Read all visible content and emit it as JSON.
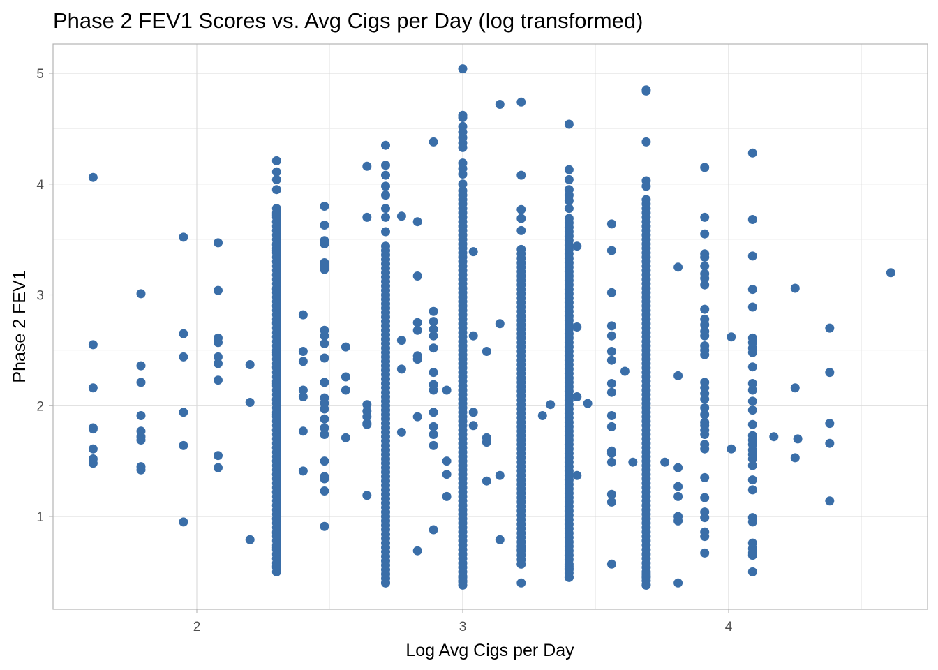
{
  "chart_data": {
    "type": "scatter",
    "title": "Phase 2 FEV1 Scores vs. Avg Cigs per Day (log transformed)",
    "xlabel": "Log Avg Cigs per Day",
    "ylabel": "Phase 2 FEV1",
    "xlim": [
      1.45,
      4.75
    ],
    "ylim": [
      0.3,
      5.3
    ],
    "x_ticks": [
      2,
      3,
      4
    ],
    "y_ticks": [
      1,
      2,
      3,
      4,
      5
    ],
    "x_minor_ticks": [
      1.5,
      2.5,
      3.5,
      4.5
    ],
    "y_minor_ticks": [
      0.5,
      1.5,
      2.5,
      3.5,
      4.5
    ],
    "grid": true,
    "point_color": "#3a6ea8",
    "series": [
      {
        "points": [
          [
            1.61,
            4.06
          ],
          [
            1.61,
            2.55
          ],
          [
            1.61,
            2.16
          ],
          [
            1.61,
            1.8
          ],
          [
            1.61,
            1.79
          ],
          [
            1.61,
            1.61
          ],
          [
            1.61,
            1.52
          ],
          [
            1.61,
            1.48
          ],
          [
            1.79,
            3.01
          ],
          [
            1.79,
            2.36
          ],
          [
            1.79,
            2.21
          ],
          [
            1.79,
            1.91
          ],
          [
            1.79,
            1.77
          ],
          [
            1.79,
            1.72
          ],
          [
            1.79,
            1.69
          ],
          [
            1.79,
            1.45
          ],
          [
            1.79,
            1.42
          ],
          [
            1.95,
            3.52
          ],
          [
            1.95,
            2.65
          ],
          [
            1.95,
            2.44
          ],
          [
            1.95,
            1.94
          ],
          [
            1.95,
            1.64
          ],
          [
            1.95,
            0.95
          ],
          [
            2.08,
            3.47
          ],
          [
            2.08,
            3.04
          ],
          [
            2.08,
            2.61
          ],
          [
            2.08,
            2.57
          ],
          [
            2.08,
            2.44
          ],
          [
            2.08,
            2.38
          ],
          [
            2.08,
            2.23
          ],
          [
            2.08,
            1.55
          ],
          [
            2.08,
            1.44
          ],
          [
            2.2,
            2.37
          ],
          [
            2.2,
            2.03
          ],
          [
            2.2,
            0.79
          ],
          [
            2.4,
            2.82
          ],
          [
            2.4,
            2.49
          ],
          [
            2.4,
            2.4
          ],
          [
            2.4,
            2.14
          ],
          [
            2.4,
            2.08
          ],
          [
            2.4,
            1.77
          ],
          [
            2.4,
            1.41
          ],
          [
            2.48,
            3.8
          ],
          [
            2.48,
            3.63
          ],
          [
            2.48,
            3.49
          ],
          [
            2.48,
            3.46
          ],
          [
            2.48,
            3.29
          ],
          [
            2.48,
            3.26
          ],
          [
            2.48,
            3.23
          ],
          [
            2.48,
            2.68
          ],
          [
            2.48,
            2.63
          ],
          [
            2.48,
            2.56
          ],
          [
            2.48,
            2.43
          ],
          [
            2.48,
            2.21
          ],
          [
            2.48,
            2.07
          ],
          [
            2.48,
            2.02
          ],
          [
            2.48,
            1.97
          ],
          [
            2.48,
            1.88
          ],
          [
            2.48,
            1.8
          ],
          [
            2.48,
            1.74
          ],
          [
            2.48,
            1.5
          ],
          [
            2.48,
            1.36
          ],
          [
            2.48,
            1.34
          ],
          [
            2.48,
            1.23
          ],
          [
            2.48,
            0.91
          ],
          [
            2.56,
            2.53
          ],
          [
            2.56,
            2.26
          ],
          [
            2.56,
            2.14
          ],
          [
            2.56,
            1.71
          ],
          [
            2.64,
            2.01
          ],
          [
            2.64,
            1.95
          ],
          [
            2.64,
            1.9
          ],
          [
            2.64,
            1.84
          ],
          [
            2.64,
            1.83
          ],
          [
            2.64,
            1.19
          ],
          [
            2.64,
            4.16
          ],
          [
            2.64,
            3.7
          ],
          [
            2.77,
            3.71
          ],
          [
            2.77,
            2.59
          ],
          [
            2.77,
            2.33
          ],
          [
            2.77,
            1.76
          ],
          [
            2.83,
            3.66
          ],
          [
            2.83,
            3.17
          ],
          [
            2.83,
            2.75
          ],
          [
            2.83,
            2.68
          ],
          [
            2.83,
            2.45
          ],
          [
            2.83,
            2.42
          ],
          [
            2.83,
            1.9
          ],
          [
            2.83,
            0.69
          ],
          [
            2.89,
            4.38
          ],
          [
            2.89,
            2.85
          ],
          [
            2.89,
            2.76
          ],
          [
            2.89,
            2.69
          ],
          [
            2.89,
            2.63
          ],
          [
            2.89,
            2.52
          ],
          [
            2.89,
            2.3
          ],
          [
            2.89,
            2.19
          ],
          [
            2.89,
            2.14
          ],
          [
            2.89,
            1.94
          ],
          [
            2.89,
            1.81
          ],
          [
            2.89,
            1.74
          ],
          [
            2.89,
            1.64
          ],
          [
            2.89,
            0.88
          ],
          [
            2.94,
            2.14
          ],
          [
            2.94,
            1.5
          ],
          [
            2.94,
            1.38
          ],
          [
            2.94,
            1.18
          ],
          [
            3.04,
            3.39
          ],
          [
            3.04,
            2.63
          ],
          [
            3.04,
            1.94
          ],
          [
            3.04,
            1.82
          ],
          [
            3.09,
            2.49
          ],
          [
            3.09,
            1.71
          ],
          [
            3.09,
            1.67
          ],
          [
            3.09,
            1.32
          ],
          [
            3.14,
            4.72
          ],
          [
            3.14,
            2.74
          ],
          [
            3.14,
            1.37
          ],
          [
            3.14,
            0.79
          ],
          [
            3.3,
            1.91
          ],
          [
            3.33,
            2.01
          ],
          [
            3.43,
            3.44
          ],
          [
            3.43,
            2.71
          ],
          [
            3.43,
            2.08
          ],
          [
            3.43,
            1.37
          ],
          [
            3.47,
            2.02
          ],
          [
            3.56,
            3.64
          ],
          [
            3.56,
            3.4
          ],
          [
            3.56,
            3.02
          ],
          [
            3.56,
            2.72
          ],
          [
            3.56,
            2.63
          ],
          [
            3.56,
            2.49
          ],
          [
            3.56,
            2.41
          ],
          [
            3.56,
            2.2
          ],
          [
            3.56,
            2.12
          ],
          [
            3.56,
            1.91
          ],
          [
            3.56,
            1.81
          ],
          [
            3.56,
            1.59
          ],
          [
            3.56,
            1.57
          ],
          [
            3.56,
            1.49
          ],
          [
            3.56,
            1.2
          ],
          [
            3.56,
            1.13
          ],
          [
            3.56,
            0.57
          ],
          [
            3.61,
            2.31
          ],
          [
            3.64,
            1.49
          ],
          [
            3.76,
            1.49
          ],
          [
            3.81,
            3.25
          ],
          [
            3.81,
            2.27
          ],
          [
            3.81,
            1.44
          ],
          [
            3.81,
            1.27
          ],
          [
            3.81,
            1.18
          ],
          [
            3.81,
            1.0
          ],
          [
            3.81,
            0.96
          ],
          [
            3.81,
            0.4
          ],
          [
            3.91,
            4.15
          ],
          [
            3.91,
            3.7
          ],
          [
            3.91,
            3.55
          ],
          [
            3.91,
            3.37
          ],
          [
            3.91,
            3.34
          ],
          [
            3.91,
            3.26
          ],
          [
            3.91,
            3.19
          ],
          [
            3.91,
            3.15
          ],
          [
            3.91,
            3.09
          ],
          [
            3.91,
            2.87
          ],
          [
            3.91,
            2.78
          ],
          [
            3.91,
            2.73
          ],
          [
            3.91,
            2.67
          ],
          [
            3.91,
            2.63
          ],
          [
            3.91,
            2.54
          ],
          [
            3.91,
            2.5
          ],
          [
            3.91,
            2.46
          ],
          [
            3.91,
            2.21
          ],
          [
            3.91,
            2.16
          ],
          [
            3.91,
            2.11
          ],
          [
            3.91,
            2.06
          ],
          [
            3.91,
            1.98
          ],
          [
            3.91,
            1.92
          ],
          [
            3.91,
            1.85
          ],
          [
            3.91,
            1.82
          ],
          [
            3.91,
            1.78
          ],
          [
            3.91,
            1.74
          ],
          [
            3.91,
            1.65
          ],
          [
            3.91,
            1.61
          ],
          [
            3.91,
            1.35
          ],
          [
            3.91,
            1.17
          ],
          [
            3.91,
            1.04
          ],
          [
            3.91,
            0.99
          ],
          [
            3.91,
            0.86
          ],
          [
            3.91,
            0.82
          ],
          [
            3.91,
            0.67
          ],
          [
            4.01,
            2.62
          ],
          [
            4.01,
            1.61
          ],
          [
            4.09,
            4.28
          ],
          [
            4.09,
            3.68
          ],
          [
            4.09,
            3.35
          ],
          [
            4.09,
            3.05
          ],
          [
            4.09,
            2.89
          ],
          [
            4.09,
            2.61
          ],
          [
            4.09,
            2.57
          ],
          [
            4.09,
            2.52
          ],
          [
            4.09,
            2.48
          ],
          [
            4.09,
            2.35
          ],
          [
            4.09,
            2.2
          ],
          [
            4.09,
            2.14
          ],
          [
            4.09,
            2.04
          ],
          [
            4.09,
            1.96
          ],
          [
            4.09,
            1.83
          ],
          [
            4.09,
            1.73
          ],
          [
            4.09,
            1.69
          ],
          [
            4.09,
            1.65
          ],
          [
            4.09,
            1.6
          ],
          [
            4.09,
            1.56
          ],
          [
            4.09,
            1.52
          ],
          [
            4.09,
            1.46
          ],
          [
            4.09,
            1.33
          ],
          [
            4.09,
            1.24
          ],
          [
            4.09,
            0.99
          ],
          [
            4.09,
            0.95
          ],
          [
            4.09,
            0.76
          ],
          [
            4.09,
            0.71
          ],
          [
            4.09,
            0.67
          ],
          [
            4.09,
            0.65
          ],
          [
            4.09,
            0.5
          ],
          [
            4.17,
            1.72
          ],
          [
            4.25,
            3.06
          ],
          [
            4.25,
            2.16
          ],
          [
            4.25,
            1.53
          ],
          [
            4.26,
            1.7
          ],
          [
            4.38,
            2.7
          ],
          [
            4.38,
            2.3
          ],
          [
            4.38,
            1.84
          ],
          [
            4.38,
            1.66
          ],
          [
            4.38,
            1.14
          ],
          [
            4.61,
            3.2
          ]
        ],
        "dense_columns": [
          {
            "x": 2.3,
            "y_min": 0.5,
            "y_max": 3.78,
            "extra": [
              4.21,
              4.11,
              4.04,
              3.95,
              3.72,
              3.66,
              3.58,
              3.45,
              3.4,
              3.3,
              3.18,
              3.05,
              2.9,
              2.75,
              2.62,
              2.48,
              2.35,
              2.2,
              2.05,
              1.92,
              1.78,
              1.62,
              1.5,
              1.38,
              1.22,
              1.1,
              0.98,
              0.85,
              0.72,
              0.62,
              0.55
            ]
          },
          {
            "x": 2.71,
            "y_min": 0.4,
            "y_max": 3.45,
            "extra": [
              4.35,
              4.17,
              4.08,
              3.98,
              3.9,
              3.78,
              3.7,
              3.57,
              0.4
            ]
          },
          {
            "x": 3.0,
            "y_min": 0.38,
            "y_max": 3.95,
            "extra": [
              5.04,
              4.62,
              4.6,
              4.52,
              4.47,
              4.42,
              4.37,
              4.33,
              4.19,
              4.14,
              4.09,
              4.0,
              0.45,
              0.41
            ]
          },
          {
            "x": 3.22,
            "y_min": 0.57,
            "y_max": 3.43,
            "extra": [
              4.74,
              4.08,
              3.77,
              3.69,
              3.58,
              0.4,
              0.57,
              0.7
            ]
          },
          {
            "x": 3.4,
            "y_min": 0.45,
            "y_max": 3.72,
            "extra": [
              4.54,
              4.13,
              4.04,
              3.95,
              3.9,
              3.85,
              3.78,
              0.45,
              0.52,
              0.55
            ]
          },
          {
            "x": 3.69,
            "y_min": 0.38,
            "y_max": 3.88,
            "extra": [
              4.85,
              4.84,
              4.38,
              4.03,
              3.98,
              0.38,
              0.45,
              0.48
            ]
          }
        ]
      }
    ]
  }
}
